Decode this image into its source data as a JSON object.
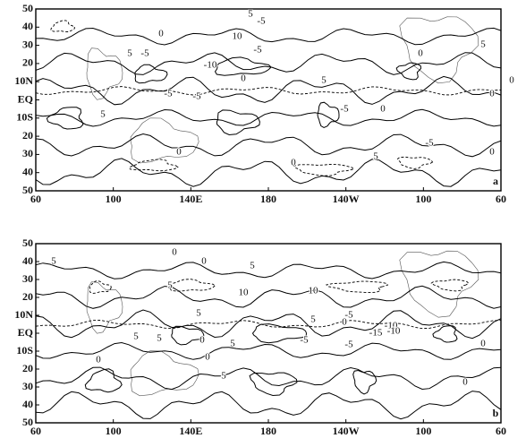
{
  "panels": [
    {
      "label": "a",
      "yticks": [
        "50",
        "40",
        "30",
        "20",
        "10N",
        "EQ",
        "10S",
        "20",
        "30",
        "40",
        "50"
      ],
      "xticks": [
        "60",
        "100",
        "140E",
        "180",
        "140W",
        "100",
        "60"
      ],
      "contour_labels": [
        "5",
        "0",
        "-5",
        "10",
        "-5",
        "5",
        "-5",
        "-10",
        "-5",
        "0",
        "5",
        "-5",
        "-5",
        "5",
        "0",
        "0",
        "0",
        "5",
        "-5",
        "0",
        "0",
        "5",
        "0",
        "0"
      ]
    },
    {
      "label": "b",
      "yticks": [
        "50",
        "40",
        "30",
        "20",
        "10N",
        "EQ",
        "10S",
        "20",
        "30",
        "40",
        "50"
      ],
      "xticks": [
        "60",
        "100",
        "140E",
        "180",
        "140W",
        "100",
        "60"
      ],
      "contour_labels": [
        "5",
        "0",
        "0",
        "5",
        "10",
        "5",
        "10",
        "5",
        "5",
        "-5",
        "0",
        "5",
        "-10",
        "-15",
        "-10",
        "-5",
        "0",
        "5",
        "5",
        "-5",
        "0",
        "0",
        "5",
        "0",
        "0"
      ]
    }
  ]
}
